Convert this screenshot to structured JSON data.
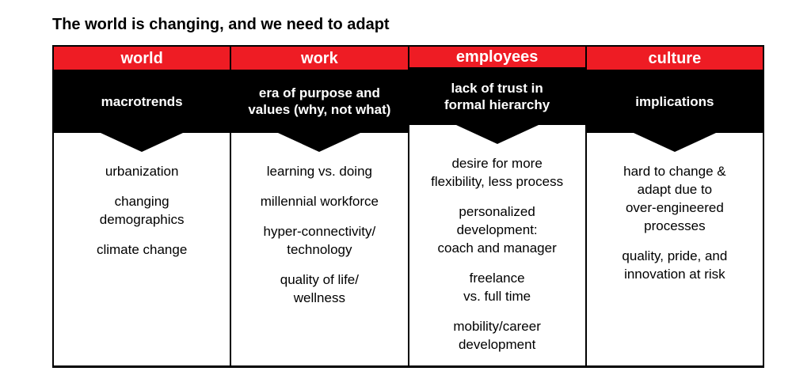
{
  "title": "The world is changing, and we need to adapt",
  "colors": {
    "accent_red": "#ee1c24",
    "band_black": "#000000",
    "page_bg": "#ffffff",
    "header_text": "#ffffff",
    "body_text": "#000000"
  },
  "columns": [
    {
      "header": "world",
      "subheader": [
        "macrotrends"
      ],
      "items": [
        [
          "urbanization"
        ],
        [
          "changing",
          "demographics"
        ],
        [
          "climate change"
        ]
      ]
    },
    {
      "header": "work",
      "subheader": [
        "era of purpose and",
        "values (why, not what)"
      ],
      "items": [
        [
          "learning vs. doing"
        ],
        [
          "millennial workforce"
        ],
        [
          "hyper-connectivity/",
          "technology"
        ],
        [
          "quality of life/",
          "wellness"
        ]
      ]
    },
    {
      "header": "employees",
      "subheader": [
        "lack of trust in",
        "formal hierarchy"
      ],
      "items": [
        [
          "desire for more",
          "flexibility, less process"
        ],
        [
          "personalized",
          "development:",
          "coach and manager"
        ],
        [
          "freelance",
          "vs. full time"
        ],
        [
          "mobility/career",
          "development"
        ]
      ]
    },
    {
      "header": "culture",
      "subheader": [
        "implications"
      ],
      "items": [
        [
          "hard to change &",
          "adapt due to",
          "over-engineered",
          "processes"
        ],
        [
          "quality, pride, and",
          "innovation at risk"
        ]
      ]
    }
  ]
}
